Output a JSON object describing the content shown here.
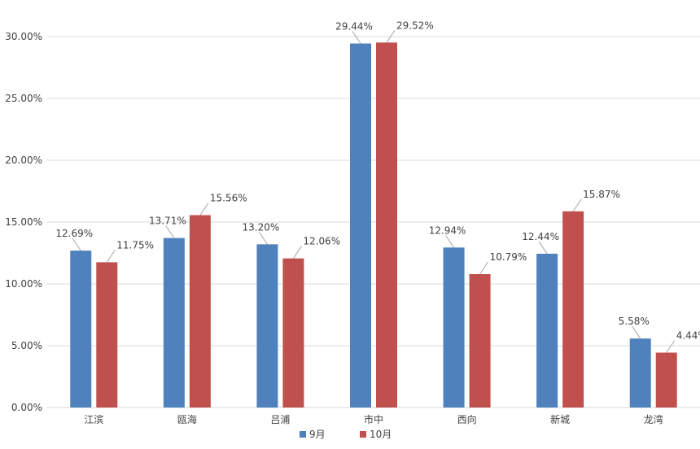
{
  "chart_data": {
    "type": "bar",
    "title": "",
    "xlabel": "",
    "ylabel": "",
    "categories": [
      "江滨",
      "瓯海",
      "吕浦",
      "市中",
      "西向",
      "新城",
      "龙湾"
    ],
    "series": [
      {
        "name": "9月",
        "color": "#4f81bd",
        "values": [
          12.69,
          13.71,
          13.2,
          29.44,
          12.94,
          12.44,
          5.58
        ]
      },
      {
        "name": "10月",
        "color": "#c0504d",
        "values": [
          11.75,
          15.56,
          12.06,
          29.52,
          10.79,
          15.87,
          4.44
        ]
      }
    ],
    "ylim": [
      0,
      30
    ],
    "yticks": [
      0,
      5,
      10,
      15,
      20,
      25,
      30
    ],
    "value_format": "percent_2dp",
    "grid": true,
    "legend_position": "bottom"
  }
}
